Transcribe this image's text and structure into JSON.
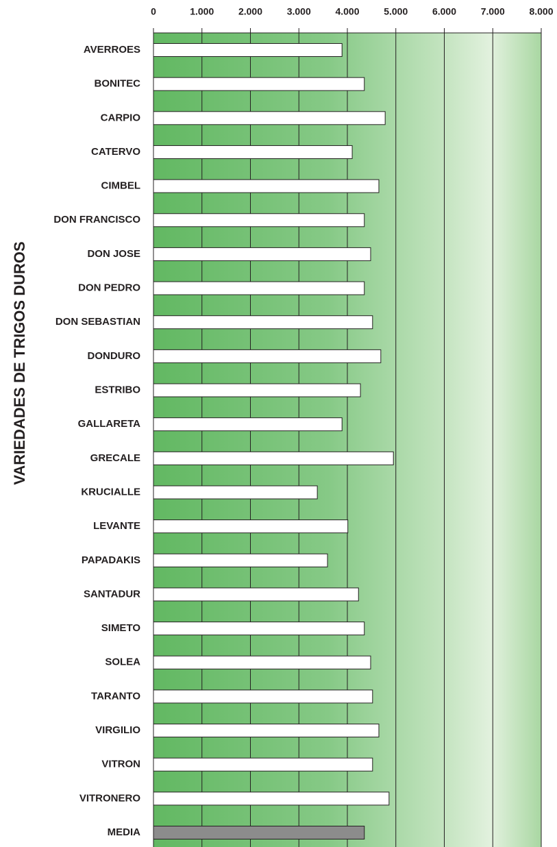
{
  "chart_data": {
    "type": "barh",
    "ylabel": "VARIEDADES DE TRIGOS DUROS",
    "categories": [
      "AVERROES",
      "BONITEC",
      "CARPIO",
      "CATERVO",
      "CIMBEL",
      "DON FRANCISCO",
      "DON JOSE",
      "DON PEDRO",
      "DON SEBASTIAN",
      "DONDURO",
      "ESTRIBO",
      "GALLARETA",
      "GRECALE",
      "KRUCIALLE",
      "LEVANTE",
      "PAPADAKIS",
      "SANTADUR",
      "SIMETO",
      "SOLEA",
      "TARANTO",
      "VIRGILIO",
      "VITRON",
      "VITRONERO",
      "MEDIA"
    ],
    "values": [
      3890,
      4350,
      4780,
      4100,
      4650,
      4350,
      4480,
      4350,
      4520,
      4690,
      4270,
      3890,
      4950,
      3380,
      4010,
      3590,
      4230,
      4350,
      4480,
      4520,
      4650,
      4520,
      4860,
      4350
    ],
    "colors": [
      "#ffffff",
      "#ffffff",
      "#ffffff",
      "#ffffff",
      "#ffffff",
      "#ffffff",
      "#ffffff",
      "#ffffff",
      "#ffffff",
      "#ffffff",
      "#ffffff",
      "#ffffff",
      "#ffffff",
      "#ffffff",
      "#ffffff",
      "#ffffff",
      "#ffffff",
      "#ffffff",
      "#ffffff",
      "#ffffff",
      "#ffffff",
      "#ffffff",
      "#ffffff",
      "#8c8c8c"
    ],
    "xlim": [
      0,
      8000
    ],
    "xticks": [
      0,
      {
        "value": 1000,
        "label": "1.000"
      },
      {
        "value": 2000,
        "label": "2.000"
      },
      {
        "value": 3000,
        "label": "3.000"
      },
      {
        "value": 4000,
        "label": "4.000"
      },
      {
        "value": 5000,
        "label": "5.000"
      },
      {
        "value": 6000,
        "label": "6.000"
      },
      {
        "value": 7000,
        "label": "7.000"
      },
      {
        "value": 8000,
        "label": "8.000"
      }
    ],
    "grid": true
  }
}
